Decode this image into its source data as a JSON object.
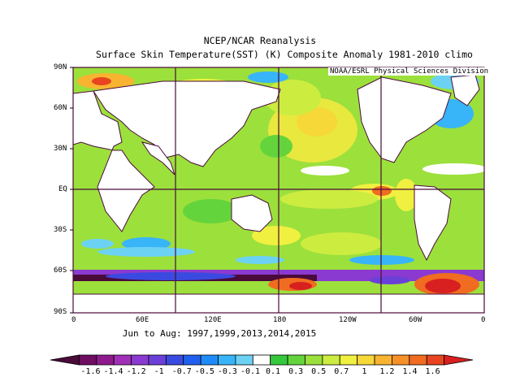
{
  "title": {
    "line1": "NCEP/NCAR Reanalysis",
    "line2": "Surface Skin Temperature(SST) (K) Composite Anomaly 1981-2010 climo"
  },
  "credit": "NOAA/ESRL Physical Sciences Division",
  "period": "Jun to Aug: 1997,1999,2013,2014,2015",
  "lat_labels": [
    "90N",
    "60N",
    "30N",
    "EQ",
    "30S",
    "60S",
    "90S"
  ],
  "lon_labels": [
    "0",
    "60E",
    "120E",
    "180",
    "120W",
    "60W",
    "0"
  ],
  "colorbar": {
    "labels": [
      "-1.6",
      "-1.4",
      "-1.2",
      "-1",
      "-0.7",
      "-0.5",
      "-0.3",
      "-0.1",
      "0.1",
      "0.3",
      "0.5",
      "0.7",
      "1",
      "1.2",
      "1.4",
      "1.6"
    ],
    "colors": [
      "#4a0a3a",
      "#6e0d62",
      "#8e1a8e",
      "#a030b8",
      "#8a3ad0",
      "#6a40d8",
      "#3a4ae0",
      "#2060f0",
      "#1e8cf8",
      "#38b4f8",
      "#6cd2f4",
      "#ffffff",
      "#34c83c",
      "#64d43c",
      "#9ce03c",
      "#ccec40",
      "#f0f040",
      "#f6d838",
      "#f8b430",
      "#f69028",
      "#f06c20",
      "#e84420",
      "#d82020"
    ]
  },
  "panel_color": "#4a0a3a"
}
